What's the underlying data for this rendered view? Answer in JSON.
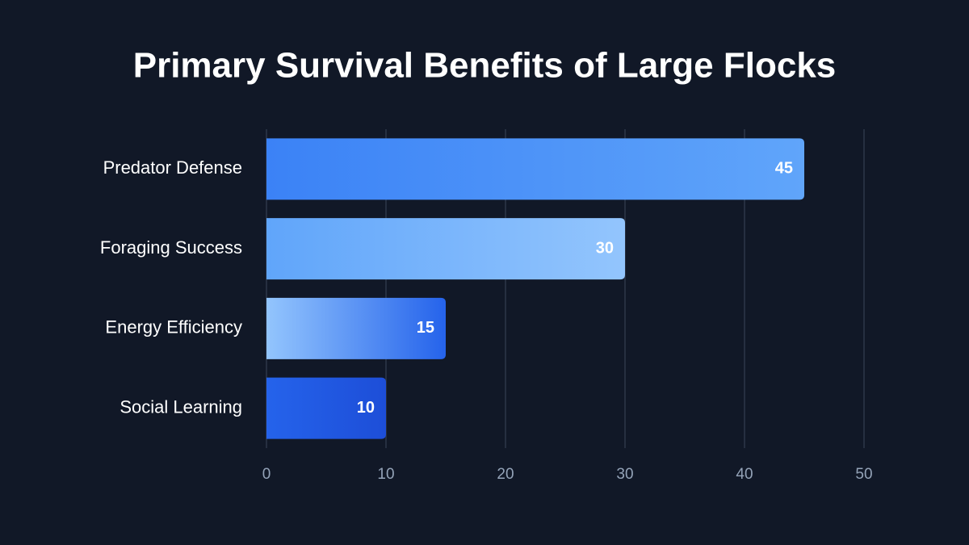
{
  "chart_data": {
    "type": "bar",
    "orientation": "horizontal",
    "title": "Primary Survival Benefits of Large Flocks",
    "categories": [
      "Predator Defense",
      "Foraging Success",
      "Energy Efficiency",
      "Social Learning"
    ],
    "values": [
      45,
      30,
      15,
      10
    ],
    "colors": [
      [
        "#3b82f6",
        "#60a5fa"
      ],
      [
        "#60a5fa",
        "#93c5fd"
      ],
      [
        "#93c5fd",
        "#2563eb"
      ],
      [
        "#2563eb",
        "#1d4ed8"
      ]
    ],
    "xlim": [
      0,
      50
    ],
    "xticks": [
      0,
      10,
      20,
      30,
      40,
      50
    ],
    "grid": true
  }
}
